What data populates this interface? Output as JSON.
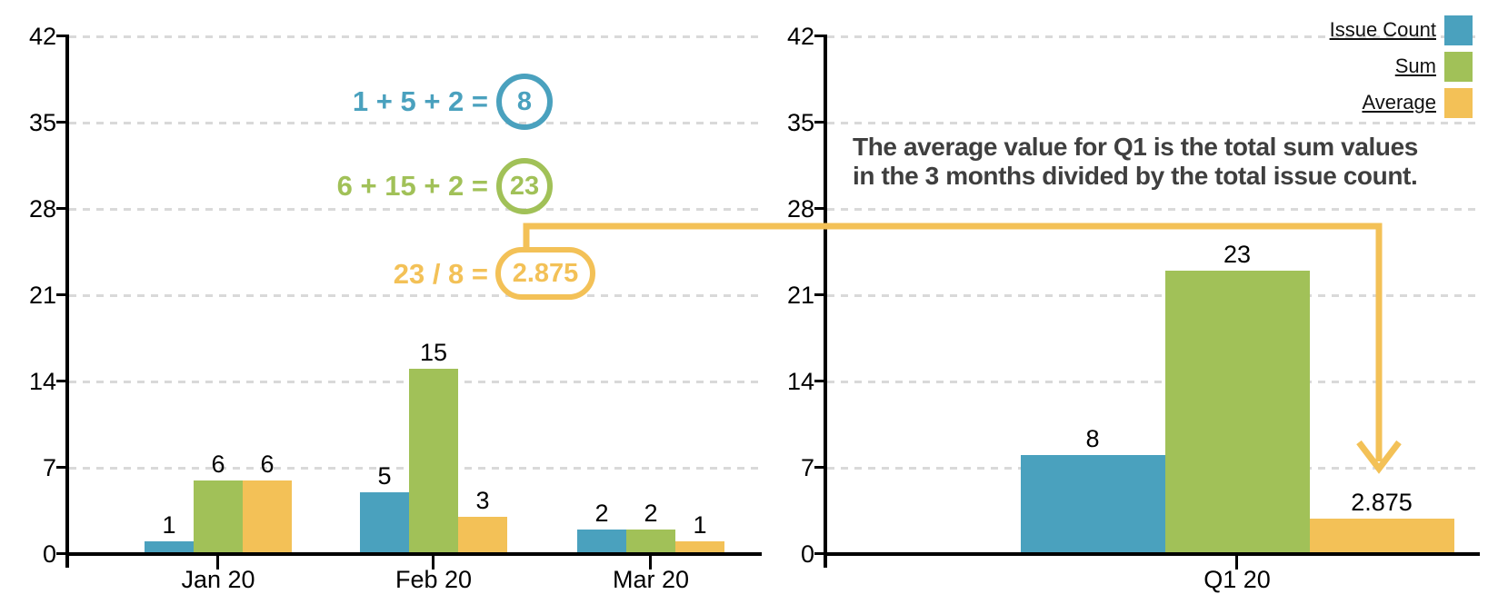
{
  "legend": {
    "items": [
      {
        "label": "Issue Count",
        "color": "#4AA1BE"
      },
      {
        "label": "Sum",
        "color": "#A1C158"
      },
      {
        "label": "Average",
        "color": "#F3C157"
      }
    ]
  },
  "annotation": {
    "line1": "The average value for Q1 is the total sum values",
    "line2": "in the 3 months divided by the total issue count."
  },
  "equations": [
    {
      "expression": "1 + 5 + 2 =",
      "result": "8",
      "color": "#4AA1BE"
    },
    {
      "expression": "6 + 15 + 2 =",
      "result": "23",
      "color": "#A1C158"
    },
    {
      "expression": "23 / 8 =",
      "result": "2.875",
      "color": "#F3C157"
    }
  ],
  "arrow_color": "#F3C157",
  "chart_data": [
    {
      "type": "bar",
      "title": "",
      "categories": [
        "Jan 20",
        "Feb 20",
        "Mar 20"
      ],
      "series": [
        {
          "name": "Issue Count",
          "values": [
            1,
            5,
            2
          ]
        },
        {
          "name": "Sum",
          "values": [
            6,
            15,
            2
          ]
        },
        {
          "name": "Average",
          "values": [
            6,
            3,
            1
          ]
        }
      ],
      "ylim": [
        0,
        42
      ],
      "yticks": [
        0,
        7,
        14,
        21,
        28,
        35,
        42
      ],
      "grid": true,
      "bar_value_labels": true,
      "legend_position": "none"
    },
    {
      "type": "bar",
      "title": "",
      "categories": [
        "Q1 20"
      ],
      "series": [
        {
          "name": "Issue Count",
          "values": [
            8
          ]
        },
        {
          "name": "Sum",
          "values": [
            23
          ]
        },
        {
          "name": "Average",
          "values": [
            2.875
          ]
        }
      ],
      "ylim": [
        0,
        42
      ],
      "yticks": [
        0,
        7,
        14,
        21,
        28,
        35,
        42
      ],
      "grid": true,
      "bar_value_labels": true,
      "legend_position": "top-right"
    }
  ]
}
